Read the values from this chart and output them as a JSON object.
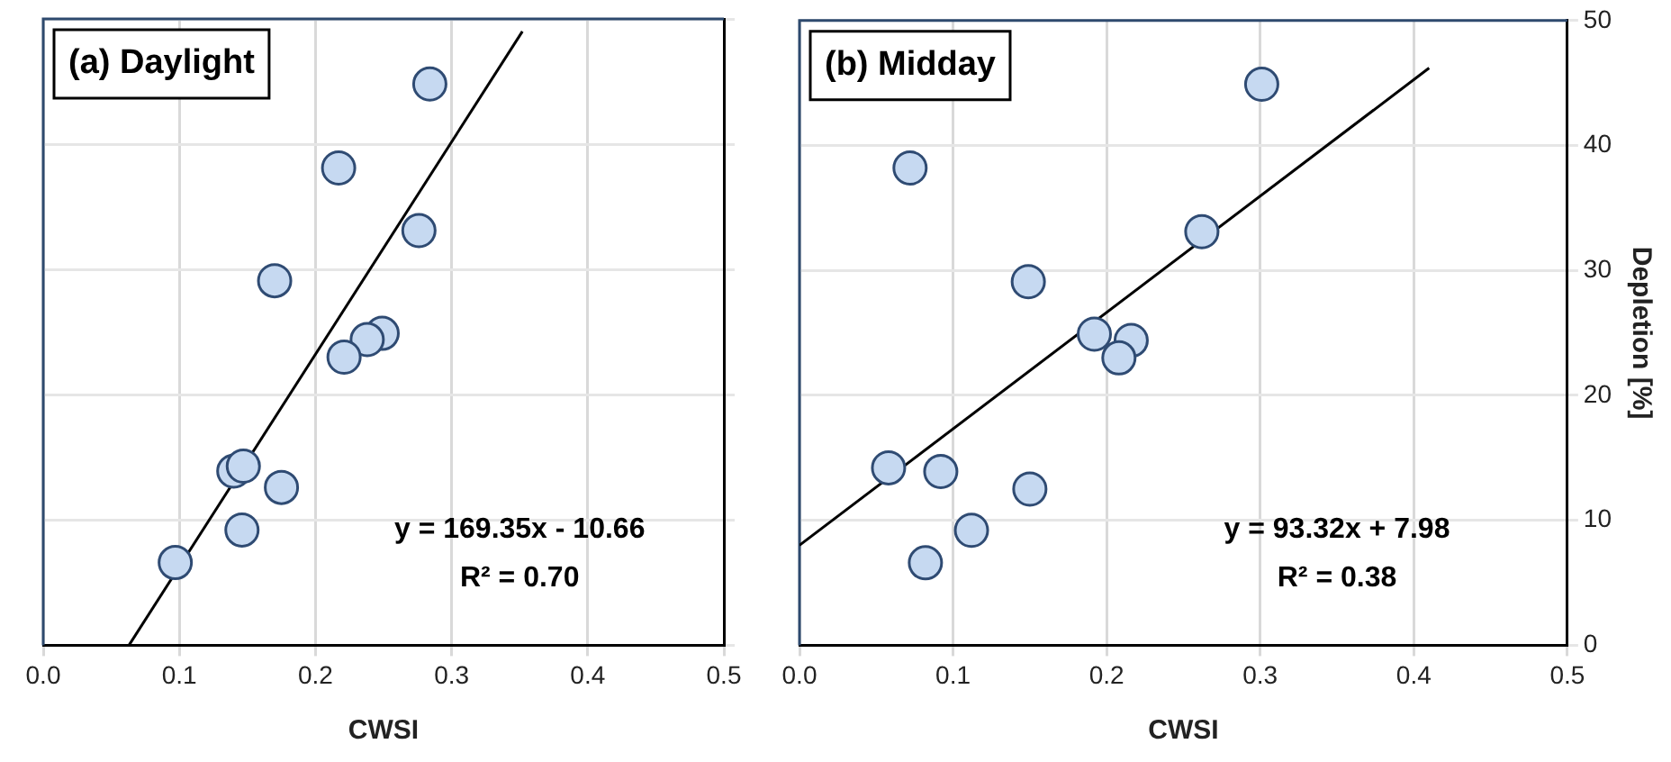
{
  "chart_data": [
    {
      "type": "scatter",
      "title": "(a) Daylight",
      "xlabel": "CWSI",
      "xlim": [
        0,
        0.5
      ],
      "xticks": [
        {
          "value": 0,
          "label": "0.0"
        },
        0.1,
        0.2,
        0.3,
        0.4,
        0.5
      ],
      "ylim": [
        0,
        50
      ],
      "yticks": [
        0,
        10,
        20,
        30,
        40,
        50
      ],
      "tick_labels": "x",
      "grid": true,
      "annotations": [
        "y = 169.35x - 10.66",
        "R² = 0.70"
      ],
      "series": [
        {
          "marker": "circle",
          "color": "#c6d9f1",
          "x": [
            0.284,
            0.217,
            0.276,
            0.17,
            0.249,
            0.238,
            0.221,
            0.14,
            0.147,
            0.175,
            0.146,
            0.097
          ],
          "values": [
            44.8,
            38.1,
            33.1,
            29.1,
            24.9,
            24.4,
            23.0,
            13.9,
            14.3,
            12.6,
            9.2,
            6.6
          ]
        },
        {
          "type": "line",
          "marker": "none",
          "color": "#000000",
          "x": [
            0.063,
            0.352
          ],
          "values": [
            0,
            49
          ]
        }
      ]
    },
    {
      "type": "scatter",
      "title": "(b) Midday",
      "xlabel": "CWSI",
      "ylabel": "Depletion [%]",
      "xlim": [
        0,
        0.5
      ],
      "xticks": [
        {
          "value": 0,
          "label": "0.0"
        },
        0.1,
        0.2,
        0.3,
        0.4,
        0.5
      ],
      "ylim": [
        0,
        50
      ],
      "yticks": [
        0,
        10,
        20,
        30,
        40,
        50
      ],
      "grid": true,
      "annotations": [
        "y = 93.32x + 7.98",
        "R² = 0.38"
      ],
      "series": [
        {
          "marker": "circle",
          "color": "#c6d9f1",
          "x": [
            0.301,
            0.072,
            0.262,
            0.149,
            0.192,
            0.216,
            0.208,
            0.058,
            0.092,
            0.15,
            0.112,
            0.082
          ],
          "values": [
            44.9,
            38.2,
            33.1,
            29.1,
            24.9,
            24.4,
            23.0,
            14.2,
            13.9,
            12.5,
            9.2,
            6.6
          ]
        },
        {
          "type": "line",
          "marker": "none",
          "color": "#000000",
          "x": [
            0,
            0.41
          ],
          "values": [
            8.0,
            46.2
          ]
        }
      ]
    }
  ]
}
